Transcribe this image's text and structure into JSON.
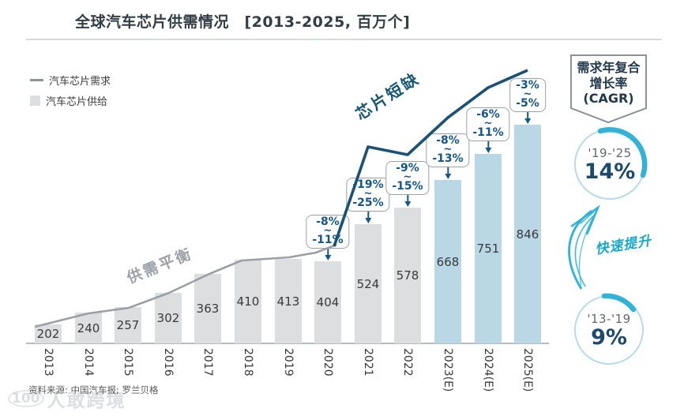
{
  "title": "全球汽车芯片供需情况　[2013-2025, 百万个]",
  "legend": {
    "demand_label": "汽车芯片需求",
    "supply_label": "汽车芯片供给"
  },
  "annotations": {
    "balance_label": "供需平衡",
    "shortage_label": "芯片短缺",
    "rapid_rise_label": "快速提升"
  },
  "cagr_panel": {
    "header": [
      "需求年复合",
      "增长率",
      "(CAGR)"
    ],
    "gauges": [
      {
        "period": "'19-'25",
        "value": "14%"
      },
      {
        "period": "'13-'19",
        "value": "9%"
      }
    ]
  },
  "footer": {
    "source": "资料来源: 中国汽车报; 罗兰贝格"
  },
  "watermark": {
    "logo": "100",
    "text": "人敢跨境"
  },
  "colors": {
    "demand_line_blue": "#1a5276",
    "callout_blue": "#15568c",
    "cyan_accent": "#2bb4d8",
    "navy_value": "#1b4a6e",
    "bar_gray": "#dcdedf",
    "bar_blue_estimated": "#b9d7e5",
    "line_gray": "#9aa0a6"
  },
  "chart_data": {
    "type": "bar",
    "title": "全球汽车芯片供需情况",
    "period": "2013-2025",
    "unit": "百万个",
    "categories": [
      "2013",
      "2014",
      "2015",
      "2016",
      "2017",
      "2018",
      "2019",
      "2020",
      "2021",
      "2022",
      "2023(E)",
      "2024(E)",
      "2025(E)"
    ],
    "series": [
      {
        "name": "汽车芯片供给",
        "type": "bar",
        "values": [
          202,
          240,
          257,
          302,
          363,
          410,
          413,
          404,
          524,
          578,
          668,
          751,
          846
        ]
      },
      {
        "name": "汽车芯片需求",
        "type": "line"
      }
    ],
    "shortage_gap_callouts": [
      {
        "category": "2020",
        "lines": [
          "-8%",
          "~",
          "-11%"
        ]
      },
      {
        "category": "2021",
        "lines": [
          "-19%",
          "~",
          "-25%"
        ]
      },
      {
        "category": "2022",
        "lines": [
          "-9%",
          "~",
          "-15%"
        ]
      },
      {
        "category": "2023(E)",
        "lines": [
          "-8%",
          "~",
          "-13%"
        ]
      },
      {
        "category": "2024(E)",
        "lines": [
          "-6%",
          "~",
          "-11%"
        ]
      },
      {
        "category": "2025(E)",
        "lines": [
          "-3%",
          "~",
          "-5%"
        ]
      }
    ],
    "legend_position": "top-left",
    "grid": false,
    "bar_color_default": "#dcdedf",
    "bar_color_estimated": "#b9d7e5"
  }
}
